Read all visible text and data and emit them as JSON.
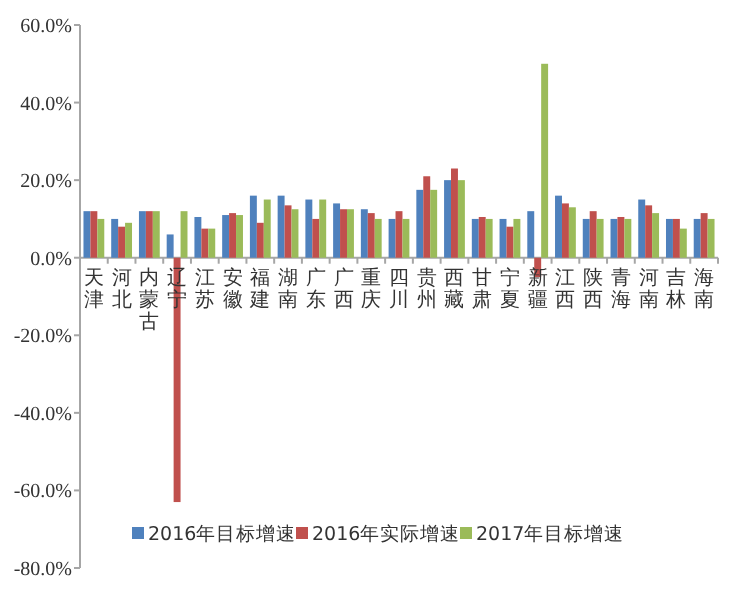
{
  "chart_data": {
    "type": "bar",
    "categories": [
      "天津",
      "河北",
      "内蒙古",
      "辽宁",
      "江苏",
      "安徽",
      "福建",
      "湖南",
      "广东",
      "广西",
      "重庆",
      "四川",
      "贵州",
      "西藏",
      "甘肃",
      "宁夏",
      "新疆",
      "江西",
      "陕西",
      "青海",
      "河南",
      "吉林",
      "海南"
    ],
    "series": [
      {
        "name": "2016年目标增速",
        "color": "#4f81bd",
        "values": [
          12,
          10,
          12,
          6,
          10.5,
          11,
          16,
          16,
          15,
          14,
          12.5,
          10,
          17.5,
          20,
          10,
          10,
          12,
          16,
          10,
          10,
          15,
          10,
          10
        ]
      },
      {
        "name": "2016年实际增速",
        "color": "#c0504d",
        "values": [
          12,
          8,
          12,
          -63,
          7.5,
          11.5,
          9,
          13.5,
          10,
          12.5,
          11.5,
          12,
          21,
          23,
          10.5,
          8,
          -5,
          14,
          12,
          10.5,
          13.5,
          10,
          11.5
        ]
      },
      {
        "name": "2017年目标增速",
        "color": "#9bbb59",
        "values": [
          10,
          9,
          12,
          12,
          7.5,
          11,
          15,
          12.5,
          15,
          12.5,
          10,
          10,
          17.5,
          20,
          10,
          10,
          50,
          13,
          10,
          10,
          11.5,
          7.5,
          10
        ]
      }
    ],
    "ylim": [
      -80,
      60
    ],
    "yticks": [
      {
        "value": -80,
        "label": "-80.0%"
      },
      {
        "value": -60,
        "label": "-60.0%"
      },
      {
        "value": -40,
        "label": "-40.0%"
      },
      {
        "value": -20,
        "label": "-20.0%"
      },
      {
        "value": 0,
        "label": "0.0%"
      },
      {
        "value": 20,
        "label": "20.0%"
      },
      {
        "value": 40,
        "label": "40.0%"
      },
      {
        "value": 60,
        "label": "60.0%"
      }
    ],
    "grid": false,
    "legend": "bottom"
  }
}
